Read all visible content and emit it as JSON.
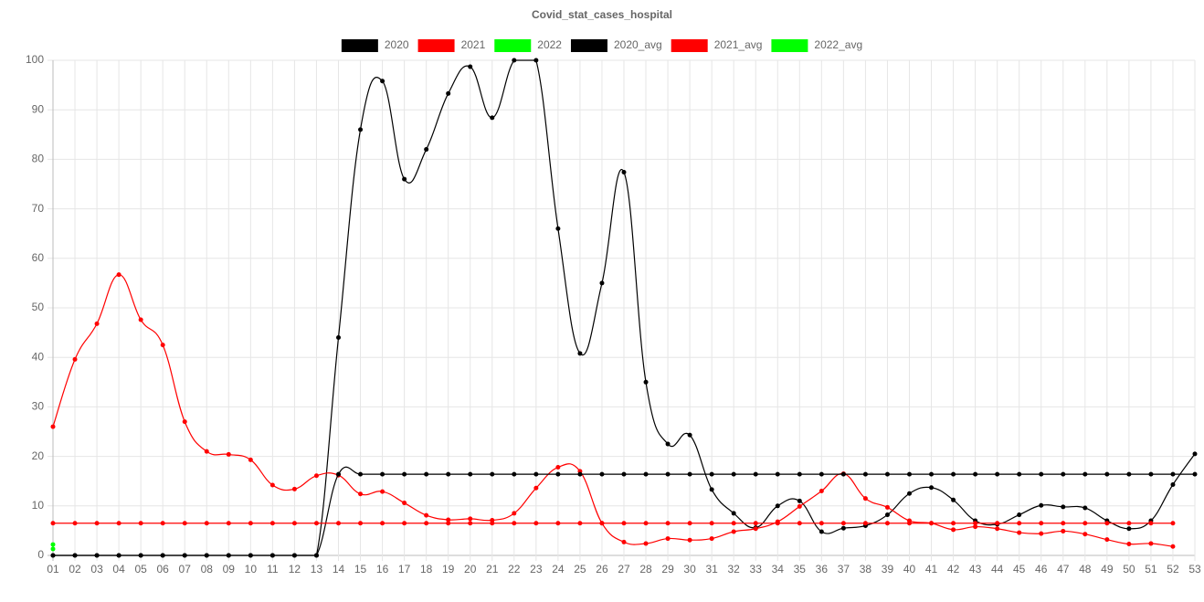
{
  "chart_data": {
    "type": "line",
    "title": "Covid_stat_cases_hospital",
    "categories": [
      "01",
      "02",
      "03",
      "04",
      "05",
      "06",
      "07",
      "08",
      "09",
      "10",
      "11",
      "12",
      "13",
      "14",
      "15",
      "16",
      "17",
      "18",
      "19",
      "20",
      "21",
      "22",
      "23",
      "24",
      "25",
      "26",
      "27",
      "28",
      "29",
      "30",
      "31",
      "32",
      "33",
      "34",
      "35",
      "36",
      "37",
      "38",
      "39",
      "40",
      "41",
      "42",
      "43",
      "44",
      "45",
      "46",
      "47",
      "48",
      "49",
      "50",
      "51",
      "52",
      "53"
    ],
    "series": [
      {
        "name": "2020",
        "color": "#000000",
        "values": [
          0,
          0,
          0,
          0,
          0,
          0,
          0,
          0,
          0,
          0,
          0,
          0,
          0,
          44,
          86,
          95.8,
          76,
          82,
          93.3,
          98.7,
          88.4,
          100,
          100,
          66,
          40.8,
          55,
          77.4,
          35,
          22.5,
          24.3,
          13.3,
          8.5,
          5.6,
          10,
          11,
          4.8,
          5.5,
          6,
          8.2,
          12.5,
          13.7,
          11.2,
          7,
          6.3,
          8.2,
          10.1,
          9.8,
          9.6,
          7,
          5.4,
          7,
          14.3,
          20.5
        ]
      },
      {
        "name": "2021",
        "color": "#ff0000",
        "values": [
          26,
          39.6,
          46.8,
          56.7,
          47.6,
          42.5,
          27,
          21,
          20.4,
          19.3,
          14.2,
          13.4,
          16.1,
          16.2,
          12.4,
          12.9,
          10.6,
          8.1,
          7.2,
          7.4,
          7.1,
          8.5,
          13.6,
          17.8,
          17,
          6.5,
          2.7,
          2.4,
          3.4,
          3.1,
          3.4,
          4.8,
          5.4,
          6.8,
          9.9,
          13,
          16.5,
          11.5,
          9.7,
          7,
          6.5,
          5.2,
          5.8,
          5.4,
          4.6,
          4.4,
          4.9,
          4.3,
          3.2,
          2.3,
          2.4,
          1.8,
          null
        ]
      },
      {
        "name": "2022",
        "color": "#00ff00",
        "values": [
          2.2,
          null,
          null,
          null,
          null,
          null,
          null,
          null,
          null,
          null,
          null,
          null,
          null,
          null,
          null,
          null,
          null,
          null,
          null,
          null,
          null,
          null,
          null,
          null,
          null,
          null,
          null,
          null,
          null,
          null,
          null,
          null,
          null,
          null,
          null,
          null,
          null,
          null,
          null,
          null,
          null,
          null,
          null,
          null,
          null,
          null,
          null,
          null,
          null,
          null,
          null,
          null,
          null
        ]
      },
      {
        "name": "2020_avg",
        "color": "#000000",
        "values": [
          0,
          0,
          0,
          0,
          0,
          0,
          0,
          0,
          0,
          0,
          0,
          0,
          0,
          16.4,
          16.4,
          16.4,
          16.4,
          16.4,
          16.4,
          16.4,
          16.4,
          16.4,
          16.4,
          16.4,
          16.4,
          16.4,
          16.4,
          16.4,
          16.4,
          16.4,
          16.4,
          16.4,
          16.4,
          16.4,
          16.4,
          16.4,
          16.4,
          16.4,
          16.4,
          16.4,
          16.4,
          16.4,
          16.4,
          16.4,
          16.4,
          16.4,
          16.4,
          16.4,
          16.4,
          16.4,
          16.4,
          16.4,
          16.4
        ]
      },
      {
        "name": "2021_avg",
        "color": "#ff0000",
        "values": [
          6.5,
          6.5,
          6.5,
          6.5,
          6.5,
          6.5,
          6.5,
          6.5,
          6.5,
          6.5,
          6.5,
          6.5,
          6.5,
          6.5,
          6.5,
          6.5,
          6.5,
          6.5,
          6.5,
          6.5,
          6.5,
          6.5,
          6.5,
          6.5,
          6.5,
          6.5,
          6.5,
          6.5,
          6.5,
          6.5,
          6.5,
          6.5,
          6.5,
          6.5,
          6.5,
          6.5,
          6.5,
          6.5,
          6.5,
          6.5,
          6.5,
          6.5,
          6.5,
          6.5,
          6.5,
          6.5,
          6.5,
          6.5,
          6.5,
          6.5,
          6.5,
          6.5,
          null
        ]
      },
      {
        "name": "2022_avg",
        "color": "#00ff00",
        "values": [
          1.3,
          null,
          null,
          null,
          null,
          null,
          null,
          null,
          null,
          null,
          null,
          null,
          null,
          null,
          null,
          null,
          null,
          null,
          null,
          null,
          null,
          null,
          null,
          null,
          null,
          null,
          null,
          null,
          null,
          null,
          null,
          null,
          null,
          null,
          null,
          null,
          null,
          null,
          null,
          null,
          null,
          null,
          null,
          null,
          null,
          null,
          null,
          null,
          null,
          null,
          null,
          null,
          null
        ]
      }
    ],
    "ylim": [
      0,
      100
    ],
    "yticks": [
      0,
      10,
      20,
      30,
      40,
      50,
      60,
      70,
      80,
      90,
      100
    ],
    "grid": true,
    "legend": "top"
  }
}
